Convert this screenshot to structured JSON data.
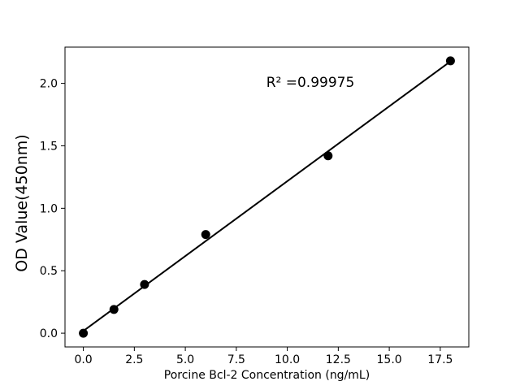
{
  "chart_data": {
    "type": "scatter",
    "title": "",
    "xlabel": "Porcine Bcl-2 Concentration (ng/mL)",
    "ylabel": "OD Value(450nm)",
    "annotation": "R² =0.99975",
    "r_squared": 0.99975,
    "x": [
      0,
      1.5,
      3,
      6,
      12,
      18
    ],
    "y": [
      0.0,
      0.19,
      0.39,
      0.79,
      1.42,
      2.18
    ],
    "fit_line": {
      "x": [
        0,
        18
      ],
      "y": [
        0.018,
        2.176
      ]
    },
    "xlim": [
      -0.9,
      18.9
    ],
    "ylim": [
      -0.11,
      2.29
    ],
    "x_ticks": [
      0.0,
      2.5,
      5.0,
      7.5,
      10.0,
      12.5,
      15.0,
      17.5
    ],
    "y_ticks": [
      0.0,
      0.5,
      1.0,
      1.5,
      2.0
    ],
    "x_tick_labels": [
      "0.0",
      "2.5",
      "5.0",
      "7.5",
      "10.0",
      "12.5",
      "15.0",
      "17.5"
    ],
    "y_tick_labels": [
      "0.0",
      "0.5",
      "1.0",
      "1.5",
      "2.0"
    ],
    "grid": false,
    "legend": null,
    "marker_color": "#000000",
    "line_color": "#000000",
    "axis_color": "#000000",
    "background": "#ffffff"
  }
}
